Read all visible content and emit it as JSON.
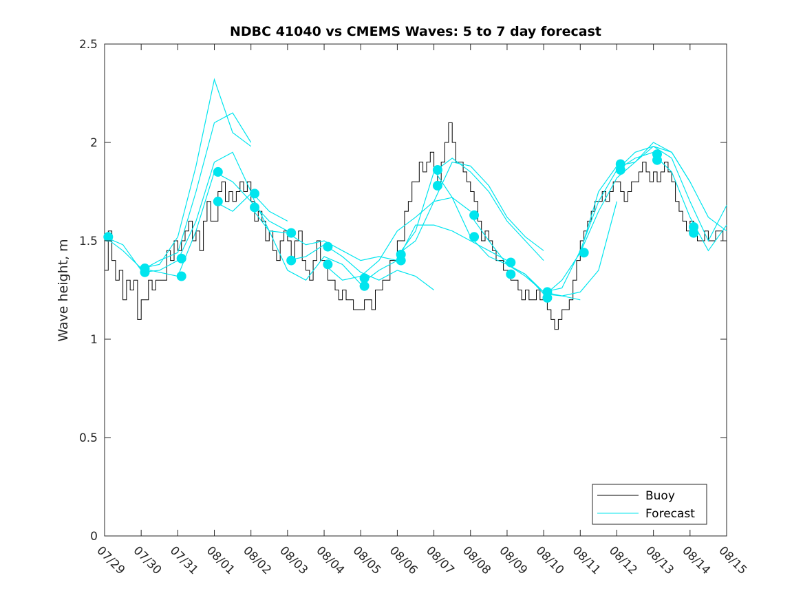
{
  "chart_data": {
    "type": "line",
    "title": "NDBC 41040 vs CMEMS Waves: 5 to 7 day forecast",
    "xlabel": "",
    "ylabel": "Wave height, m",
    "xlim": [
      "07/29",
      "08/15"
    ],
    "ylim": [
      0,
      2.5
    ],
    "yticks": [
      "0",
      "0.5",
      "1",
      "1.5",
      "2",
      "2.5"
    ],
    "xticks": [
      "07/29",
      "07/30",
      "07/31",
      "08/01",
      "08/02",
      "08/03",
      "08/04",
      "08/05",
      "08/06",
      "08/07",
      "08/08",
      "08/09",
      "08/10",
      "08/11",
      "08/12",
      "08/13",
      "08/14",
      "08/15"
    ],
    "grid": false,
    "legend_position": "bottom-right",
    "colors": {
      "buoy": "#000000",
      "forecast": "#00e5ee"
    },
    "legend": [
      {
        "label": "Buoy",
        "color": "#000000"
      },
      {
        "label": "Forecast",
        "color": "#00e5ee"
      }
    ],
    "buoy": {
      "name": "Buoy",
      "x_days_from_0729": [
        0.0,
        0.1,
        0.2,
        0.3,
        0.4,
        0.5,
        0.6,
        0.7,
        0.8,
        0.9,
        1.0,
        1.1,
        1.2,
        1.3,
        1.4,
        1.5,
        1.6,
        1.7,
        1.8,
        1.9,
        2.0,
        2.1,
        2.2,
        2.3,
        2.4,
        2.5,
        2.6,
        2.7,
        2.8,
        2.9,
        3.0,
        3.1,
        3.2,
        3.3,
        3.4,
        3.5,
        3.6,
        3.7,
        3.8,
        3.9,
        4.0,
        4.1,
        4.2,
        4.3,
        4.4,
        4.5,
        4.6,
        4.7,
        4.8,
        4.9,
        5.0,
        5.1,
        5.2,
        5.3,
        5.4,
        5.5,
        5.6,
        5.7,
        5.8,
        5.9,
        6.0,
        6.1,
        6.2,
        6.3,
        6.4,
        6.5,
        6.6,
        6.7,
        6.8,
        6.9,
        7.0,
        7.1,
        7.2,
        7.3,
        7.4,
        7.5,
        7.6,
        7.7,
        7.8,
        7.9,
        8.0,
        8.1,
        8.2,
        8.3,
        8.4,
        8.5,
        8.6,
        8.7,
        8.8,
        8.9,
        9.0,
        9.1,
        9.2,
        9.3,
        9.4,
        9.5,
        9.6,
        9.7,
        9.8,
        9.9,
        10.0,
        10.1,
        10.2,
        10.3,
        10.4,
        10.5,
        10.6,
        10.7,
        10.8,
        10.9,
        11.0,
        11.1,
        11.2,
        11.3,
        11.4,
        11.5,
        11.6,
        11.7,
        11.8,
        11.9,
        12.0,
        12.1,
        12.2,
        12.3,
        12.4,
        12.5,
        12.6,
        12.7,
        12.8,
        12.9,
        13.0,
        13.1,
        13.2,
        13.3,
        13.4,
        13.5,
        13.6,
        13.7,
        13.8,
        13.9,
        14.0,
        14.1,
        14.2,
        14.3,
        14.4,
        14.5,
        14.6,
        14.7,
        14.8,
        14.9,
        15.0,
        15.1,
        15.2,
        15.3,
        15.4,
        15.5,
        15.6,
        15.7,
        15.8,
        15.9,
        16.0,
        16.1,
        16.2,
        16.3,
        16.4,
        16.5,
        16.6,
        16.7,
        16.8,
        16.9,
        17.0
      ],
      "values": [
        1.35,
        1.55,
        1.4,
        1.3,
        1.35,
        1.2,
        1.3,
        1.25,
        1.3,
        1.1,
        1.2,
        1.2,
        1.3,
        1.25,
        1.3,
        1.3,
        1.3,
        1.45,
        1.4,
        1.5,
        1.45,
        1.5,
        1.55,
        1.6,
        1.5,
        1.55,
        1.45,
        1.6,
        1.7,
        1.6,
        1.6,
        1.75,
        1.8,
        1.7,
        1.75,
        1.7,
        1.75,
        1.8,
        1.75,
        1.8,
        1.7,
        1.6,
        1.65,
        1.6,
        1.5,
        1.55,
        1.45,
        1.4,
        1.5,
        1.55,
        1.5,
        1.4,
        1.5,
        1.55,
        1.4,
        1.35,
        1.3,
        1.4,
        1.5,
        1.4,
        1.4,
        1.3,
        1.3,
        1.25,
        1.2,
        1.25,
        1.2,
        1.2,
        1.15,
        1.15,
        1.15,
        1.2,
        1.2,
        1.15,
        1.25,
        1.25,
        1.3,
        1.3,
        1.4,
        1.4,
        1.5,
        1.5,
        1.65,
        1.7,
        1.8,
        1.8,
        1.9,
        1.85,
        1.9,
        1.95,
        1.85,
        1.8,
        1.9,
        2.0,
        2.1,
        2.0,
        1.9,
        1.9,
        1.85,
        1.8,
        1.75,
        1.7,
        1.6,
        1.5,
        1.55,
        1.5,
        1.45,
        1.4,
        1.4,
        1.35,
        1.35,
        1.3,
        1.3,
        1.25,
        1.2,
        1.25,
        1.2,
        1.2,
        1.25,
        1.2,
        1.2,
        1.15,
        1.1,
        1.05,
        1.1,
        1.15,
        1.15,
        1.2,
        1.3,
        1.4,
        1.5,
        1.55,
        1.6,
        1.65,
        1.7,
        1.7,
        1.75,
        1.7,
        1.75,
        1.8,
        1.8,
        1.75,
        1.7,
        1.75,
        1.8,
        1.8,
        1.85,
        1.9,
        1.85,
        1.8,
        1.85,
        1.8,
        1.85,
        1.9,
        1.85,
        1.8,
        1.7,
        1.65,
        1.6,
        1.55,
        1.6,
        1.55,
        1.5,
        1.5,
        1.55,
        1.5,
        1.5,
        1.55,
        1.55,
        1.5,
        1.5
      ]
    },
    "forecast_runs": [
      {
        "name": "Forecast",
        "x_days_from_0729": [
          0,
          0.5,
          1.0,
          1.5,
          2.0,
          2.5,
          3.0,
          3.5,
          4.0
        ],
        "values": [
          1.52,
          1.45,
          1.36,
          1.38,
          1.52,
          1.88,
          2.32,
          2.05,
          1.98
        ]
      },
      {
        "name": "Forecast",
        "x_days_from_0729": [
          0,
          0.5,
          1.0,
          1.5,
          2.0,
          2.5,
          3.0,
          3.5,
          4.0
        ],
        "values": [
          1.52,
          1.48,
          1.35,
          1.4,
          1.44,
          1.75,
          2.1,
          2.15,
          2.0
        ]
      },
      {
        "name": "Forecast",
        "x_days_from_0729": [
          1.0,
          1.5,
          2.0,
          2.5,
          3.0,
          3.5,
          4.0,
          4.5,
          5.0
        ],
        "values": [
          1.34,
          1.35,
          1.4,
          1.6,
          1.9,
          1.95,
          1.75,
          1.65,
          1.6
        ]
      },
      {
        "name": "Forecast",
        "x_days_from_0729": [
          1.0,
          1.5,
          2.0,
          2.5,
          3.0,
          3.5,
          4.0,
          4.5,
          5.0
        ],
        "values": [
          1.36,
          1.34,
          1.32,
          1.55,
          1.85,
          1.8,
          1.7,
          1.6,
          1.55
        ]
      },
      {
        "name": "Forecast",
        "x_days_from_0729": [
          3.0,
          3.5,
          4.0,
          4.5,
          5.0,
          5.5,
          6.0,
          6.5,
          7.0
        ],
        "values": [
          1.7,
          1.65,
          1.74,
          1.55,
          1.35,
          1.3,
          1.42,
          1.38,
          1.28
        ]
      },
      {
        "name": "Forecast",
        "x_days_from_0729": [
          4.0,
          4.5,
          5.0,
          5.5,
          6.0,
          6.5,
          7.0,
          7.5,
          8.0
        ],
        "values": [
          1.67,
          1.55,
          1.54,
          1.48,
          1.5,
          1.45,
          1.4,
          1.42,
          1.4
        ]
      },
      {
        "name": "Forecast",
        "x_days_from_0729": [
          5.0,
          5.5,
          6.0,
          6.5,
          7.0,
          7.5,
          8.0,
          8.5,
          9.0
        ],
        "values": [
          1.4,
          1.42,
          1.48,
          1.42,
          1.34,
          1.3,
          1.35,
          1.32,
          1.25
        ]
      },
      {
        "name": "Forecast",
        "x_days_from_0729": [
          6.0,
          6.5,
          7.0,
          7.5,
          8.0,
          8.5,
          9.0,
          9.5,
          10.0
        ],
        "values": [
          1.38,
          1.3,
          1.32,
          1.4,
          1.55,
          1.62,
          1.7,
          1.72,
          1.65
        ]
      },
      {
        "name": "Forecast",
        "x_days_from_0729": [
          7.0,
          7.5,
          8.0,
          8.5,
          9.0,
          9.5,
          10.0,
          10.5,
          11.0
        ],
        "values": [
          1.28,
          1.35,
          1.4,
          1.58,
          1.58,
          1.55,
          1.5,
          1.45,
          1.4
        ]
      },
      {
        "name": "Forecast",
        "x_days_from_0729": [
          8.0,
          8.5,
          9.0,
          9.5,
          10.0,
          10.5,
          11.0,
          11.5,
          12.0
        ],
        "values": [
          1.42,
          1.55,
          1.85,
          1.92,
          1.85,
          1.75,
          1.6,
          1.5,
          1.4
        ]
      },
      {
        "name": "Forecast",
        "x_days_from_0729": [
          8.0,
          8.5,
          9.0,
          9.5,
          10.0,
          10.5,
          11.0,
          11.5,
          12.0
        ],
        "values": [
          1.43,
          1.5,
          1.7,
          1.9,
          1.88,
          1.78,
          1.62,
          1.52,
          1.45
        ]
      },
      {
        "name": "Forecast",
        "x_days_from_0729": [
          9.0,
          9.5,
          10.0,
          10.5,
          11.0,
          11.5,
          12.0,
          12.5,
          13.0
        ],
        "values": [
          1.86,
          1.72,
          1.52,
          1.42,
          1.38,
          1.33,
          1.24,
          1.22,
          1.2
        ]
      },
      {
        "name": "Forecast",
        "x_days_from_0729": [
          10.0,
          10.5,
          11.0,
          11.5,
          12.0,
          12.5,
          13.0,
          13.5,
          14.0
        ],
        "values": [
          1.63,
          1.5,
          1.38,
          1.33,
          1.23,
          1.22,
          1.24,
          1.35,
          1.7
        ]
      },
      {
        "name": "Forecast",
        "x_days_from_0729": [
          11.0,
          11.5,
          12.0,
          12.5,
          13.0,
          13.5,
          14.0,
          14.5,
          15.0
        ],
        "values": [
          1.38,
          1.32,
          1.24,
          1.26,
          1.45,
          1.7,
          1.86,
          1.92,
          1.95
        ]
      },
      {
        "name": "Forecast",
        "x_days_from_0729": [
          12.0,
          12.5,
          13.0,
          13.5,
          14.0,
          14.5,
          15.0,
          15.5,
          16.0
        ],
        "values": [
          1.22,
          1.3,
          1.44,
          1.75,
          1.88,
          1.9,
          1.98,
          1.95,
          1.8
        ]
      },
      {
        "name": "Forecast",
        "x_days_from_0729": [
          13.0,
          13.5,
          14.0,
          14.5,
          15.0,
          15.5,
          16.0,
          16.5,
          17.0
        ],
        "values": [
          1.44,
          1.65,
          1.82,
          1.9,
          2.0,
          1.95,
          1.8,
          1.62,
          1.55
        ]
      },
      {
        "name": "Forecast",
        "x_days_from_0729": [
          14.0,
          14.5,
          15.0,
          15.5,
          16.0,
          16.5,
          17.0
        ],
        "values": [
          1.86,
          1.95,
          1.98,
          1.92,
          1.7,
          1.5,
          1.68
        ]
      },
      {
        "name": "Forecast",
        "x_days_from_0729": [
          15.0,
          15.5,
          16.0,
          16.5,
          17.0
        ],
        "values": [
          1.94,
          1.85,
          1.62,
          1.45,
          1.58
        ]
      }
    ],
    "forecast_markers": {
      "x_days_from_0729": [
        0.1,
        1.1,
        1.1,
        2.1,
        2.1,
        3.1,
        3.1,
        4.1,
        4.1,
        5.1,
        5.1,
        6.1,
        6.1,
        7.1,
        7.1,
        8.1,
        8.1,
        9.1,
        9.1,
        10.1,
        10.1,
        11.1,
        11.1,
        12.1,
        12.1,
        13.1,
        13.1,
        14.1,
        14.1,
        15.1,
        15.1,
        16.1,
        16.1
      ],
      "values": [
        1.52,
        1.36,
        1.34,
        1.41,
        1.32,
        1.85,
        1.7,
        1.74,
        1.67,
        1.54,
        1.4,
        1.47,
        1.38,
        1.31,
        1.27,
        1.43,
        1.4,
        1.86,
        1.78,
        1.63,
        1.52,
        1.39,
        1.33,
        1.24,
        1.21,
        1.44,
        1.44,
        1.89,
        1.86,
        1.94,
        1.91,
        1.57,
        1.54
      ]
    }
  }
}
